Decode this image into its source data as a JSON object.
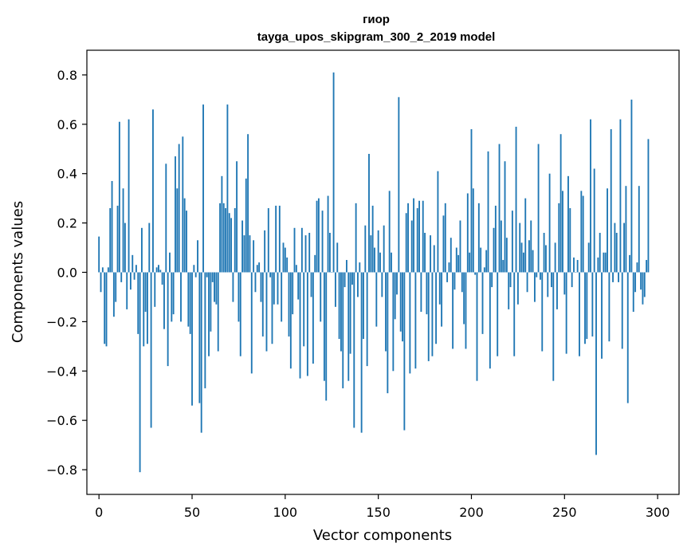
{
  "chart_data": {
    "type": "bar",
    "title_line1": "гиор",
    "title_line2": "tayga_upos_skipgram_300_2_2019 model",
    "xlabel": "Vector components",
    "ylabel": "Components values",
    "xlim": [
      -6.5,
      311.5
    ],
    "ylim": [
      -0.9,
      0.9
    ],
    "x_ticks": [
      0,
      50,
      100,
      150,
      200,
      250,
      300
    ],
    "x_tick_labels": [
      "0",
      "50",
      "100",
      "150",
      "200",
      "250",
      "300"
    ],
    "y_ticks": [
      -0.8,
      -0.6,
      -0.4,
      -0.2,
      0.0,
      0.2,
      0.4,
      0.6,
      0.8
    ],
    "y_tick_labels": [
      "−0.8",
      "−0.6",
      "−0.4",
      "−0.2",
      "0.0",
      "0.2",
      "0.4",
      "0.6",
      "0.8"
    ],
    "bar_color": "#1f77b4",
    "grid": false,
    "values": [
      0.145,
      -0.08,
      0.02,
      -0.29,
      -0.3,
      0.02,
      0.26,
      0.37,
      -0.18,
      -0.12,
      0.27,
      0.61,
      -0.04,
      0.34,
      0.2,
      -0.15,
      0.62,
      -0.07,
      0.07,
      -0.03,
      0.03,
      -0.25,
      -0.81,
      0.18,
      -0.3,
      -0.16,
      -0.29,
      0.2,
      -0.63,
      0.66,
      -0.14,
      0.02,
      0.03,
      0.01,
      -0.05,
      -0.23,
      0.44,
      -0.38,
      0.08,
      -0.2,
      -0.17,
      0.47,
      0.34,
      0.52,
      -0.2,
      0.55,
      0.3,
      0.25,
      -0.22,
      -0.25,
      -0.54,
      0.03,
      -0.02,
      0.13,
      -0.53,
      -0.65,
      0.68,
      -0.47,
      -0.02,
      -0.34,
      -0.24,
      -0.04,
      -0.12,
      -0.13,
      -0.32,
      0.28,
      0.39,
      0.28,
      0.26,
      0.68,
      0.24,
      0.22,
      -0.12,
      0.26,
      0.45,
      -0.2,
      -0.34,
      0.21,
      0.15,
      0.38,
      0.56,
      0.15,
      -0.41,
      0.13,
      -0.08,
      0.03,
      0.04,
      -0.12,
      -0.26,
      0.17,
      -0.32,
      0.26,
      -0.02,
      -0.29,
      -0.13,
      0.27,
      -0.13,
      0.27,
      -0.2,
      0.12,
      0.1,
      0.06,
      -0.26,
      -0.39,
      -0.17,
      0.18,
      0.03,
      -0.11,
      -0.43,
      0.18,
      -0.3,
      0.15,
      -0.42,
      0.16,
      -0.1,
      -0.37,
      0.07,
      0.29,
      0.3,
      -0.2,
      0.25,
      -0.44,
      -0.52,
      0.31,
      0.16,
      0.0,
      0.81,
      -0.14,
      0.12,
      -0.27,
      -0.32,
      -0.47,
      -0.06,
      0.05,
      -0.44,
      -0.33,
      -0.05,
      -0.63,
      0.28,
      -0.1,
      0.04,
      -0.65,
      -0.27,
      0.19,
      -0.38,
      0.48,
      0.15,
      0.27,
      0.1,
      -0.22,
      0.17,
      0.08,
      -0.1,
      0.19,
      -0.32,
      -0.49,
      0.33,
      0.08,
      -0.4,
      -0.19,
      -0.09,
      0.71,
      -0.24,
      -0.28,
      -0.64,
      0.24,
      0.28,
      -0.41,
      0.21,
      0.3,
      -0.39,
      0.26,
      0.29,
      -0.16,
      0.29,
      0.16,
      -0.17,
      -0.36,
      0.15,
      -0.34,
      0.11,
      -0.29,
      0.41,
      -0.13,
      -0.22,
      0.23,
      0.28,
      -0.04,
      0.04,
      0.14,
      -0.31,
      -0.07,
      0.1,
      0.07,
      0.21,
      -0.08,
      -0.21,
      -0.31,
      0.32,
      0.08,
      0.58,
      0.34,
      -0.01,
      -0.44,
      0.28,
      0.1,
      -0.25,
      0.02,
      0.09,
      0.49,
      -0.39,
      -0.06,
      0.18,
      0.27,
      -0.34,
      0.52,
      0.21,
      0.05,
      0.45,
      0.14,
      -0.15,
      -0.06,
      0.25,
      -0.34,
      0.59,
      -0.13,
      0.2,
      0.12,
      0.08,
      0.3,
      -0.08,
      0.13,
      0.21,
      0.09,
      -0.12,
      -0.02,
      0.52,
      -0.03,
      -0.32,
      0.16,
      0.11,
      -0.1,
      0.4,
      -0.06,
      -0.44,
      0.12,
      -0.15,
      0.28,
      0.56,
      0.33,
      -0.09,
      -0.33,
      0.39,
      0.26,
      -0.06,
      0.06,
      0.0,
      0.05,
      -0.34,
      0.33,
      0.31,
      -0.29,
      -0.27,
      0.12,
      0.62,
      -0.26,
      0.42,
      -0.74,
      0.06,
      0.16,
      -0.35,
      0.08,
      0.08,
      0.34,
      -0.28,
      0.58,
      -0.04,
      0.2,
      0.16,
      -0.04,
      0.62,
      -0.31,
      0.2,
      0.35,
      -0.53,
      0.07,
      0.7,
      -0.16,
      -0.08,
      0.04,
      0.35,
      -0.07,
      -0.13,
      -0.1,
      0.05,
      0.54
    ]
  }
}
